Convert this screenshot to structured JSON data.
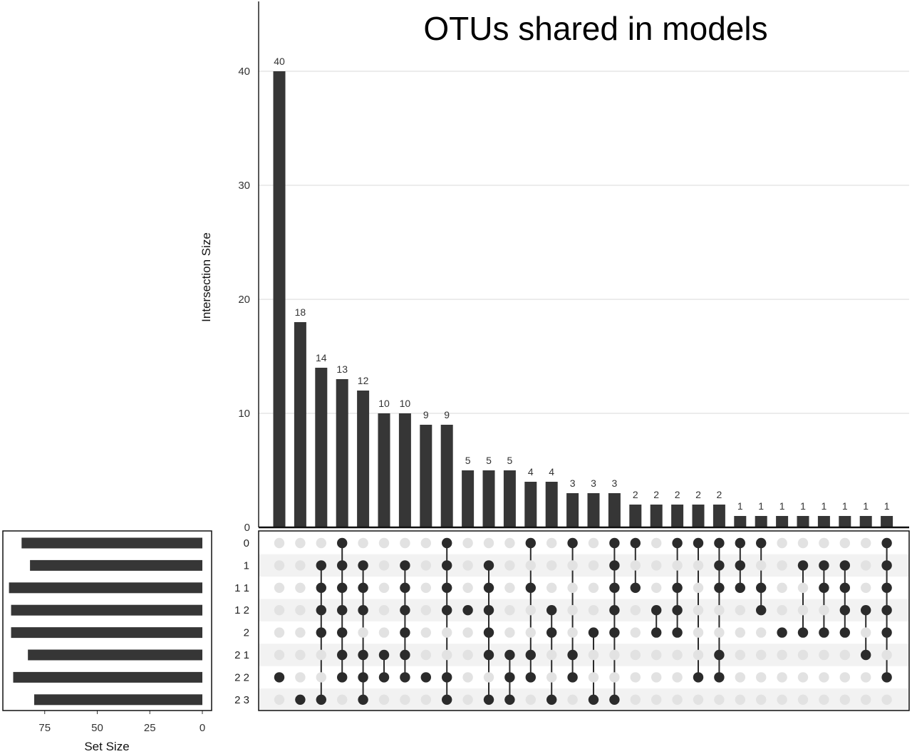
{
  "chart_data": {
    "type": "bar",
    "title": "OTUs shared in models",
    "ylabel": "Intersection Size",
    "set_size_label": "Set Size",
    "ylim": [
      0,
      46
    ],
    "y_ticks": [
      0,
      10,
      20,
      30,
      40
    ],
    "grid": true,
    "set_size_xlim": [
      0,
      92
    ],
    "set_size_ticks": [
      75,
      50,
      25,
      0
    ],
    "sets": [
      "0",
      "1",
      "1 1",
      "1 2",
      "2",
      "2 1",
      "2 2",
      "2 3"
    ],
    "set_sizes": [
      86,
      82,
      92,
      91,
      91,
      83,
      90,
      80
    ],
    "values": [
      40,
      18,
      14,
      13,
      12,
      10,
      10,
      9,
      9,
      5,
      5,
      5,
      4,
      4,
      3,
      3,
      3,
      2,
      2,
      2,
      2,
      2,
      1,
      1,
      1,
      1,
      1,
      1,
      1,
      1
    ],
    "membership": [
      [
        0,
        0,
        0,
        0,
        0,
        0,
        1,
        0
      ],
      [
        0,
        0,
        0,
        0,
        0,
        0,
        0,
        1
      ],
      [
        0,
        1,
        1,
        1,
        1,
        0,
        0,
        1
      ],
      [
        1,
        1,
        1,
        1,
        1,
        1,
        1,
        0
      ],
      [
        0,
        1,
        1,
        1,
        0,
        1,
        1,
        1
      ],
      [
        0,
        0,
        0,
        0,
        0,
        1,
        1,
        0
      ],
      [
        0,
        1,
        1,
        1,
        1,
        1,
        1,
        0
      ],
      [
        0,
        0,
        0,
        0,
        0,
        0,
        1,
        0
      ],
      [
        1,
        1,
        1,
        1,
        0,
        0,
        1,
        1
      ],
      [
        0,
        0,
        0,
        1,
        0,
        0,
        0,
        0
      ],
      [
        0,
        1,
        1,
        1,
        1,
        1,
        0,
        1
      ],
      [
        0,
        0,
        0,
        0,
        0,
        1,
        1,
        1
      ],
      [
        1,
        0,
        1,
        0,
        0,
        1,
        1,
        0
      ],
      [
        0,
        0,
        0,
        1,
        1,
        0,
        0,
        1
      ],
      [
        1,
        0,
        0,
        0,
        0,
        1,
        1,
        0
      ],
      [
        0,
        0,
        0,
        0,
        1,
        0,
        0,
        1
      ],
      [
        1,
        1,
        1,
        1,
        1,
        0,
        0,
        1
      ],
      [
        1,
        0,
        1,
        0,
        0,
        0,
        0,
        0
      ],
      [
        0,
        0,
        0,
        1,
        1,
        0,
        0,
        0
      ],
      [
        1,
        0,
        1,
        1,
        1,
        0,
        0,
        0
      ],
      [
        1,
        0,
        0,
        0,
        0,
        0,
        1,
        0
      ],
      [
        1,
        1,
        1,
        0,
        0,
        1,
        1,
        0
      ],
      [
        1,
        1,
        1,
        0,
        0,
        0,
        0,
        0
      ],
      [
        1,
        0,
        1,
        1,
        0,
        0,
        0,
        0
      ],
      [
        0,
        0,
        0,
        0,
        1,
        0,
        0,
        0
      ],
      [
        0,
        1,
        0,
        0,
        1,
        0,
        0,
        0
      ],
      [
        0,
        1,
        1,
        0,
        1,
        0,
        0,
        0
      ],
      [
        0,
        1,
        1,
        1,
        1,
        0,
        0,
        0
      ],
      [
        0,
        0,
        0,
        1,
        0,
        1,
        0,
        0
      ],
      [
        1,
        1,
        1,
        1,
        1,
        0,
        1,
        0
      ]
    ]
  },
  "colors": {
    "bar": "#363636",
    "dot_on": "#2b2b2b",
    "dot_off": "#e2e2e2",
    "stripe": "#f2f2f2",
    "grid": "#e6e6e6"
  }
}
